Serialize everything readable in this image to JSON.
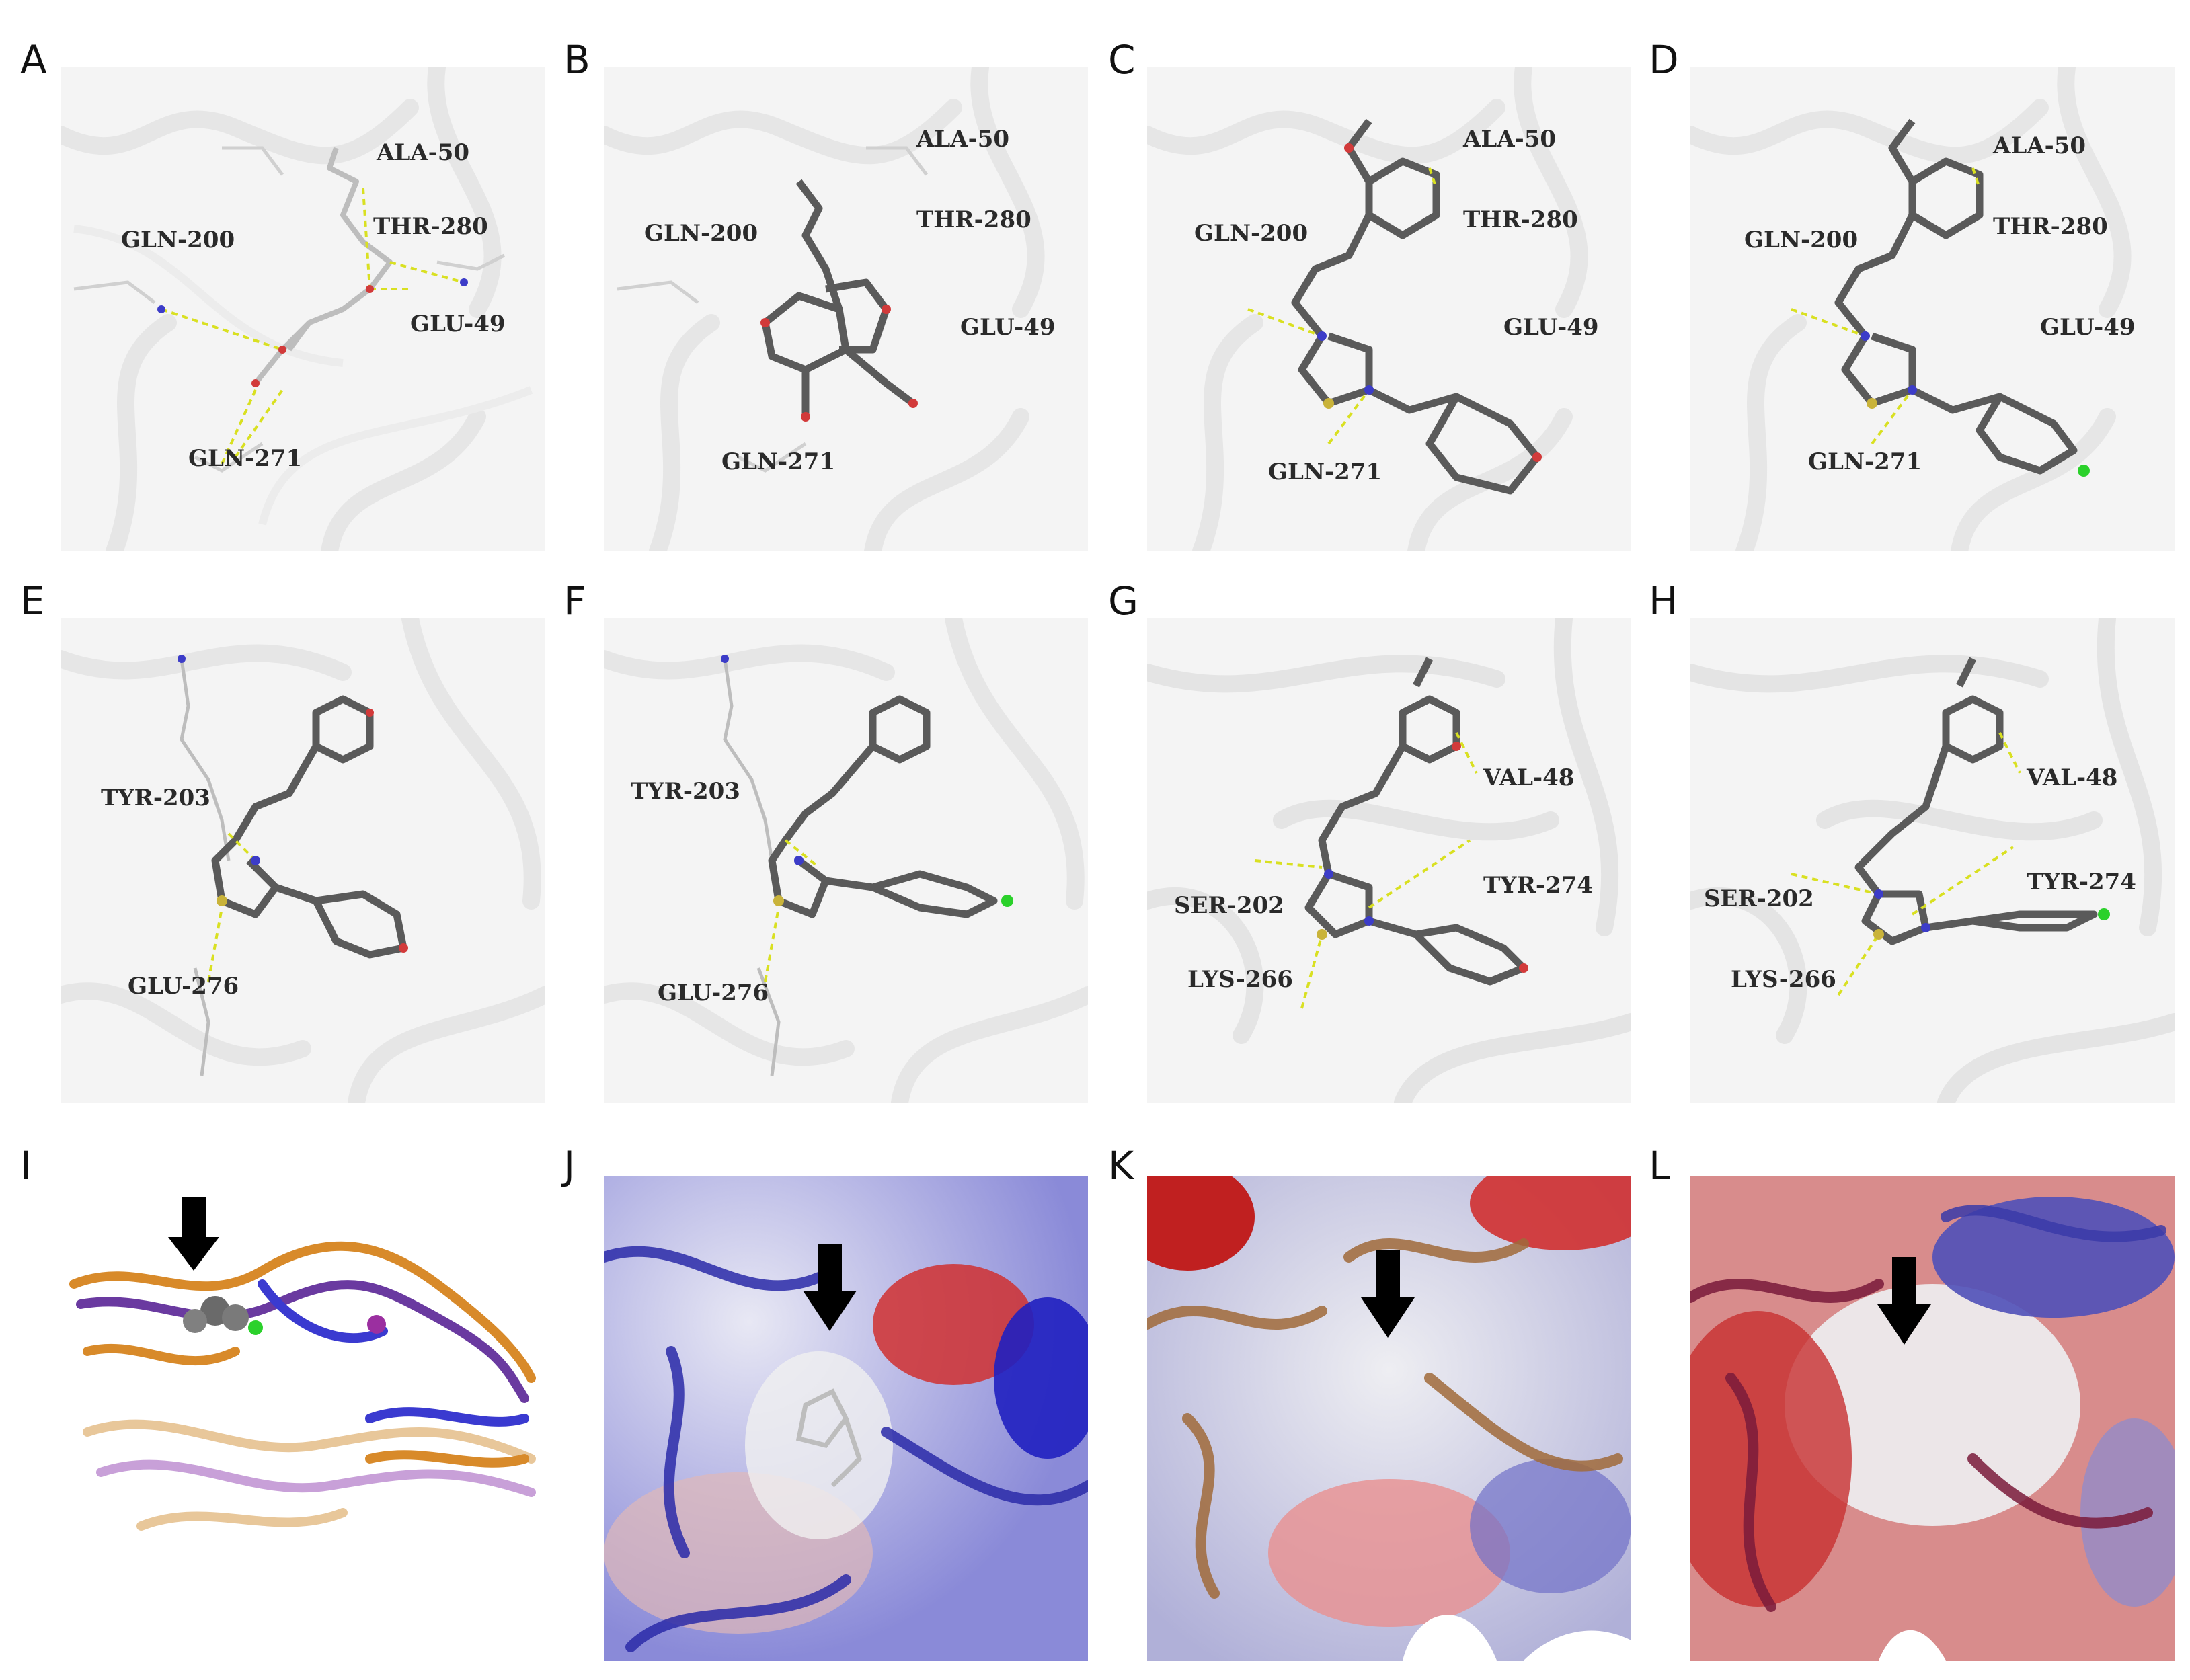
{
  "figure": {
    "panels": [
      {
        "letter": "A",
        "labels": [
          "ALA-50",
          "THR-280",
          "GLN-200",
          "GLU-49",
          "GLN-271"
        ]
      },
      {
        "letter": "B",
        "labels": [
          "ALA-50",
          "THR-280",
          "GLN-200",
          "GLU-49",
          "GLN-271"
        ]
      },
      {
        "letter": "C",
        "labels": [
          "ALA-50",
          "THR-280",
          "GLN-200",
          "GLU-49",
          "GLN-271"
        ]
      },
      {
        "letter": "D",
        "labels": [
          "ALA-50",
          "THR-280",
          "GLN-200",
          "GLU-49",
          "GLN-271"
        ]
      },
      {
        "letter": "E",
        "labels": [
          "TYR-203",
          "GLU-276"
        ]
      },
      {
        "letter": "F",
        "labels": [
          "TYR-203",
          "GLU-276"
        ]
      },
      {
        "letter": "G",
        "labels": [
          "VAL-48",
          "SER-202",
          "TYR-274",
          "LYS-266"
        ]
      },
      {
        "letter": "H",
        "labels": [
          "VAL-48",
          "SER-202",
          "TYR-274",
          "LYS-266"
        ]
      },
      {
        "letter": "I",
        "labels": []
      },
      {
        "letter": "J",
        "labels": []
      },
      {
        "letter": "K",
        "labels": []
      },
      {
        "letter": "L",
        "labels": []
      }
    ]
  },
  "colors": {
    "ligand": "#5a5a5a",
    "residue": "#bfbfbf",
    "hbond": "#d9e021",
    "oxygen": "#d23a3a",
    "nitrogen": "#3c3cc8",
    "sulfur": "#c9b33a",
    "chlorine": "#2bd12b",
    "surface_positive": "#3a3ad0",
    "surface_negative": "#d03030",
    "ribbon_orange": "#d88a2a",
    "ribbon_purple": "#6a3aa0"
  }
}
